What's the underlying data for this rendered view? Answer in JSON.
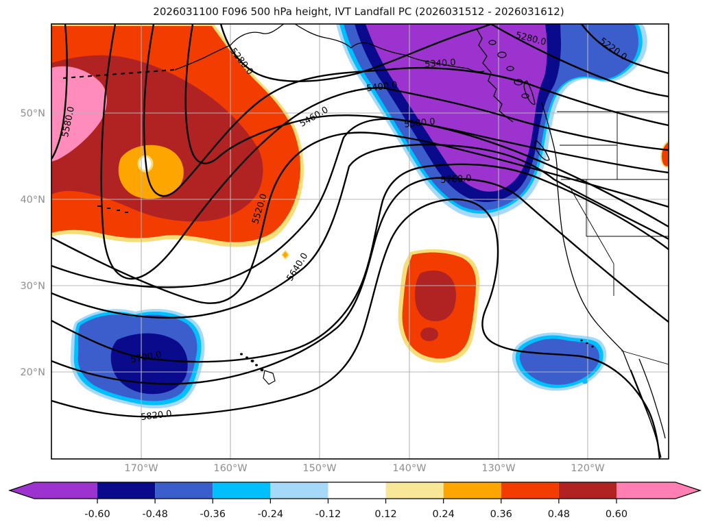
{
  "title": "2026031100 F096 500 hPa height, IVT Landfall PC (2026031512 - 2026031612)",
  "axes": {
    "lat_ticks": [
      "50°N",
      "40°N",
      "30°N",
      "20°N"
    ],
    "lon_ticks": [
      "170°W",
      "160°W",
      "150°W",
      "140°W",
      "130°W",
      "120°W"
    ]
  },
  "chart_data": {
    "type": "contour-map",
    "region": "Northeast Pacific / western North America",
    "contour_field": "500 hPa geopotential height (m)",
    "shading_field": "IVT Landfall PC",
    "contour_levels": [
      5220,
      5280,
      5340,
      5400,
      5460,
      5520,
      5580,
      5640,
      5700,
      5760,
      5820
    ],
    "contour_labels": [
      "5580.0",
      "5280.0",
      "5460.0",
      "5340.0",
      "5400.0",
      "5280.0",
      "5220.0",
      "5580.0",
      "5760.0",
      "5520.0",
      "5640.0",
      "5700.0",
      "5820.0"
    ],
    "grid": true,
    "colorbar": {
      "orientation": "horizontal",
      "extend": "both",
      "ticks": [
        "-0.60",
        "-0.48",
        "-0.36",
        "-0.24",
        "-0.12",
        "0.12",
        "0.24",
        "0.36",
        "0.48",
        "0.60"
      ],
      "segment_colors": [
        "#9c33cf",
        "#0a0a8c",
        "#3c5ecc",
        "#00bfff",
        "#a6d9f7",
        "#ffffff",
        "#f8e796",
        "#ffa500",
        "#f33d00",
        "#b12323",
        "#ff7fb2"
      ]
    },
    "fill_colors": {
      "strong_negative": "#9c33cf",
      "negative": "#0a0a8c",
      "moderate_negative": "#3c5ecc",
      "weak_negative": "#00bfff",
      "weakest_negative": "#a6d9f7",
      "weakest_positive": "#f8e796",
      "weak_positive": "#ffa500",
      "moderate_positive": "#f33d00",
      "strong_positive": "#b12323",
      "extreme_positive": "#ff8cba"
    }
  }
}
